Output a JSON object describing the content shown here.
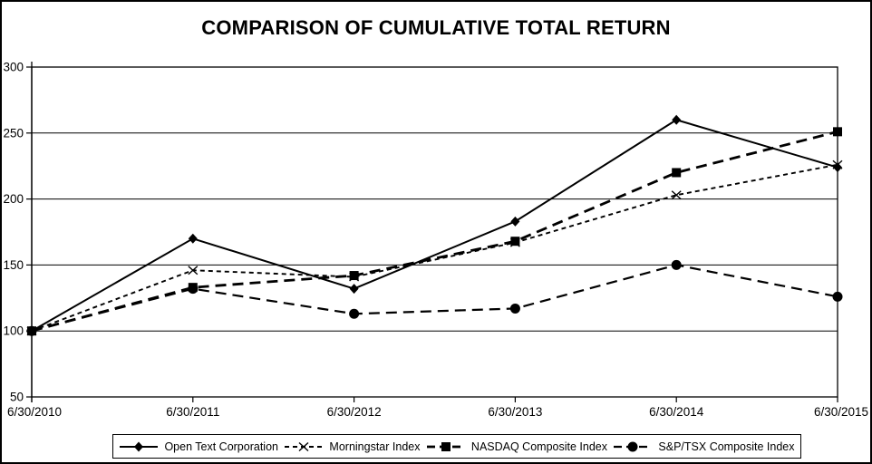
{
  "window": {
    "background": "#ffffff",
    "border_color": "#000000",
    "text_color": "#000000"
  },
  "chart_data": {
    "type": "line",
    "title": "COMPARISON OF CUMULATIVE TOTAL RETURN",
    "xlabel": "",
    "ylabel": "",
    "x_labels": [
      "6/30/2010",
      "6/30/2011",
      "6/30/2012",
      "6/30/2013",
      "6/30/2014",
      "6/30/2015"
    ],
    "y_ticks": [
      300,
      250,
      200,
      150,
      100,
      50
    ],
    "ylim": [
      50,
      300
    ],
    "grid": true,
    "legend_position": "bottom",
    "line_color": "#000000",
    "series": [
      {
        "name": "Open Text Corporation",
        "marker": "diamond",
        "line_style": "solid",
        "color": "#000000",
        "values": [
          100,
          170,
          132,
          183,
          260,
          224
        ]
      },
      {
        "name": "Morningstar Index",
        "marker": "x",
        "line_style": "short-dash",
        "color": "#000000",
        "values": [
          100,
          146,
          141,
          167,
          203,
          226
        ]
      },
      {
        "name": "NASDAQ Composite Index",
        "marker": "square",
        "line_style": "long-dash",
        "color": "#000000",
        "values": [
          100,
          133,
          142,
          168,
          220,
          251
        ]
      },
      {
        "name": "S&P/TSX Composite Index",
        "marker": "circle",
        "line_style": "long-dash",
        "color": "#000000",
        "values": [
          100,
          132,
          113,
          117,
          150,
          126
        ]
      }
    ]
  }
}
